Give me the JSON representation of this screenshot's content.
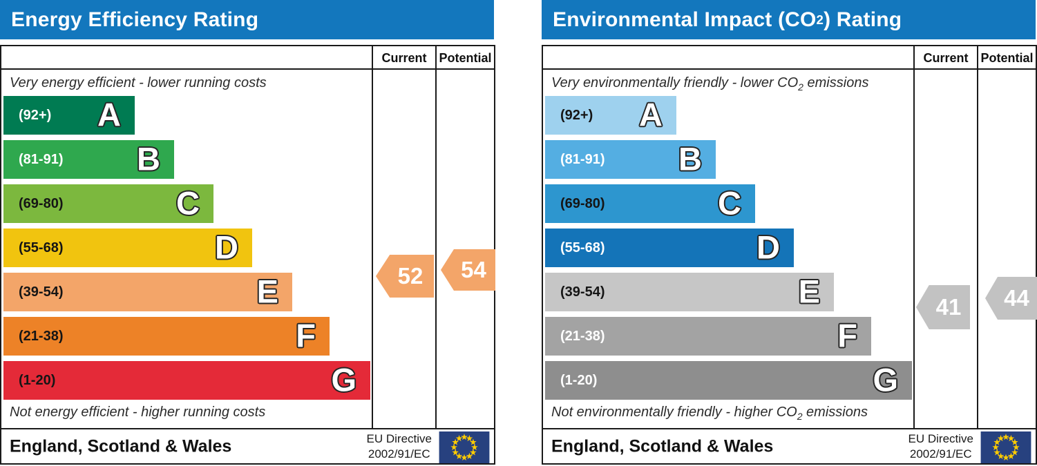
{
  "colors": {
    "title_bar": "#1377bd",
    "border": "#1a1a1a",
    "eu_flag_field": "#27417f",
    "eu_flag_stars": "#ffcc00"
  },
  "panels": [
    {
      "title": {
        "pre": "Energy Efficiency Rating",
        "sub": "",
        "post": ""
      },
      "columns": {
        "current": "Current",
        "potential": "Potential"
      },
      "top_note": {
        "pre": "Very energy efficient - lower running costs",
        "sub": "",
        "post": ""
      },
      "bottom_note": {
        "pre": "Not energy efficient - higher running costs",
        "sub": "",
        "post": ""
      },
      "bands": [
        {
          "letter": "A",
          "range": "(92+)",
          "color": "#007b52"
        },
        {
          "letter": "B",
          "range": "(81-91)",
          "color": "#2fa84e"
        },
        {
          "letter": "C",
          "range": "(69-80)",
          "color": "#7cb83e"
        },
        {
          "letter": "D",
          "range": "(55-68)",
          "color": "#f1c40f"
        },
        {
          "letter": "E",
          "range": "(39-54)",
          "color": "#f3a569"
        },
        {
          "letter": "F",
          "range": "(21-38)",
          "color": "#ed8227"
        },
        {
          "letter": "G",
          "range": "(1-20)",
          "color": "#e42a38"
        }
      ],
      "current": {
        "value": "52",
        "color": "#f3a569"
      },
      "potential": {
        "value": "54",
        "color": "#f3a569"
      },
      "footer": {
        "region": "England, Scotland & Wales",
        "directive_line1": "EU Directive",
        "directive_line2": "2002/91/EC"
      }
    },
    {
      "title": {
        "pre": "Environmental Impact (CO",
        "sub": "2",
        "post": ") Rating"
      },
      "columns": {
        "current": "Current",
        "potential": "Potential"
      },
      "top_note": {
        "pre": "Very environmentally friendly - lower CO",
        "sub": "2",
        "post": " emissions"
      },
      "bottom_note": {
        "pre": "Not environmentally friendly - higher CO",
        "sub": "2",
        "post": " emissions"
      },
      "bands": [
        {
          "letter": "A",
          "range": "(92+)",
          "color": "#9ed1ee"
        },
        {
          "letter": "B",
          "range": "(81-91)",
          "color": "#54aee2"
        },
        {
          "letter": "C",
          "range": "(69-80)",
          "color": "#2d96cf"
        },
        {
          "letter": "D",
          "range": "(55-68)",
          "color": "#1474b8"
        },
        {
          "letter": "E",
          "range": "(39-54)",
          "color": "#c6c6c6"
        },
        {
          "letter": "F",
          "range": "(21-38)",
          "color": "#a3a3a3"
        },
        {
          "letter": "G",
          "range": "(1-20)",
          "color": "#8e8e8e"
        }
      ],
      "current": {
        "value": "41",
        "color": "#c2c2c2"
      },
      "potential": {
        "value": "44",
        "color": "#c2c2c2"
      },
      "footer": {
        "region": "England, Scotland & Wales",
        "directive_line1": "EU Directive",
        "directive_line2": "2002/91/EC"
      }
    }
  ],
  "chart_data": [
    {
      "type": "bar",
      "title": "Energy Efficiency Rating",
      "categories": [
        "A",
        "B",
        "C",
        "D",
        "E",
        "F",
        "G"
      ],
      "band_ranges": [
        "92+",
        "81-91",
        "69-80",
        "55-68",
        "39-54",
        "21-38",
        "1-20"
      ],
      "band_colors": [
        "#007b52",
        "#2fa84e",
        "#7cb83e",
        "#f1c40f",
        "#f3a569",
        "#ed8227",
        "#e42a38"
      ],
      "series": [
        {
          "name": "Current",
          "values": [
            52
          ],
          "band": "E"
        },
        {
          "name": "Potential",
          "values": [
            54
          ],
          "band": "E"
        }
      ],
      "annotation_top": "Very energy efficient - lower running costs",
      "annotation_bottom": "Not energy efficient - higher running costs",
      "region": "England, Scotland & Wales",
      "directive": "EU Directive 2002/91/EC",
      "value_range": [
        1,
        100
      ],
      "legend_position": "top-right-columns"
    },
    {
      "type": "bar",
      "title": "Environmental Impact (CO2) Rating",
      "categories": [
        "A",
        "B",
        "C",
        "D",
        "E",
        "F",
        "G"
      ],
      "band_ranges": [
        "92+",
        "81-91",
        "69-80",
        "55-68",
        "39-54",
        "21-38",
        "1-20"
      ],
      "band_colors": [
        "#9ed1ee",
        "#54aee2",
        "#2d96cf",
        "#1474b8",
        "#c6c6c6",
        "#a3a3a3",
        "#8e8e8e"
      ],
      "series": [
        {
          "name": "Current",
          "values": [
            41
          ],
          "band": "E"
        },
        {
          "name": "Potential",
          "values": [
            44
          ],
          "band": "E"
        }
      ],
      "annotation_top": "Very environmentally friendly - lower CO2 emissions",
      "annotation_bottom": "Not environmentally friendly - higher CO2 emissions",
      "region": "England, Scotland & Wales",
      "directive": "EU Directive 2002/91/EC",
      "value_range": [
        1,
        100
      ],
      "legend_position": "top-right-columns"
    }
  ]
}
